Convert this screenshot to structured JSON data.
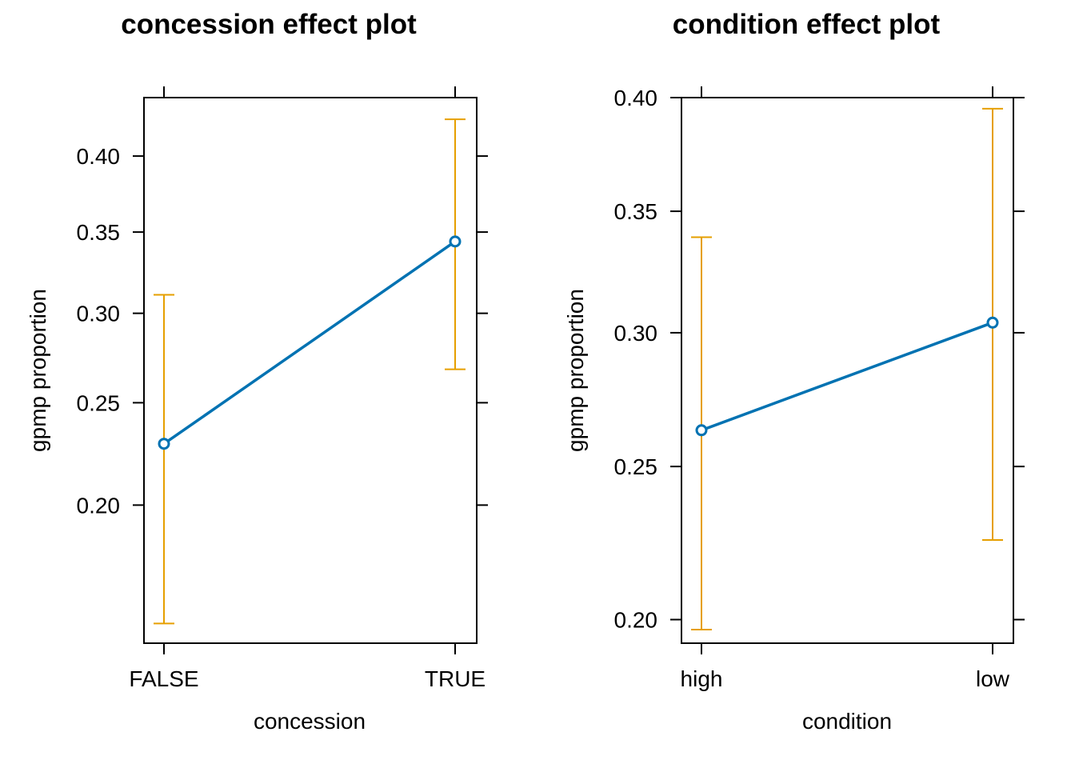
{
  "chart_data": [
    {
      "type": "line",
      "title": "concession effect plot",
      "xlabel": "concession",
      "ylabel": "gpmp proportion",
      "categories": [
        "FALSE",
        "TRUE"
      ],
      "values": [
        0.229,
        0.344
      ],
      "lower": [
        0.152,
        0.268
      ],
      "upper": [
        0.311,
        0.425
      ],
      "yticks": [
        "0.20",
        "0.25",
        "0.30",
        "0.35",
        "0.40"
      ],
      "ylim": [
        0.145,
        0.44
      ],
      "scale": "logit",
      "grid": false,
      "colors": {
        "fit": "#0072B2",
        "ci": "#E69F00"
      }
    },
    {
      "type": "line",
      "title": "condition effect plot",
      "xlabel": "condition",
      "ylabel": "gpmp proportion",
      "categories": [
        "high",
        "low"
      ],
      "values": [
        0.263,
        0.304
      ],
      "lower": [
        0.197,
        0.225
      ],
      "upper": [
        0.339,
        0.395
      ],
      "yticks": [
        "0.20",
        "0.25",
        "0.30",
        "0.35",
        "0.40"
      ],
      "ylim": [
        0.193,
        0.4
      ],
      "scale": "logit",
      "grid": false,
      "colors": {
        "fit": "#0072B2",
        "ci": "#E69F00"
      }
    }
  ]
}
